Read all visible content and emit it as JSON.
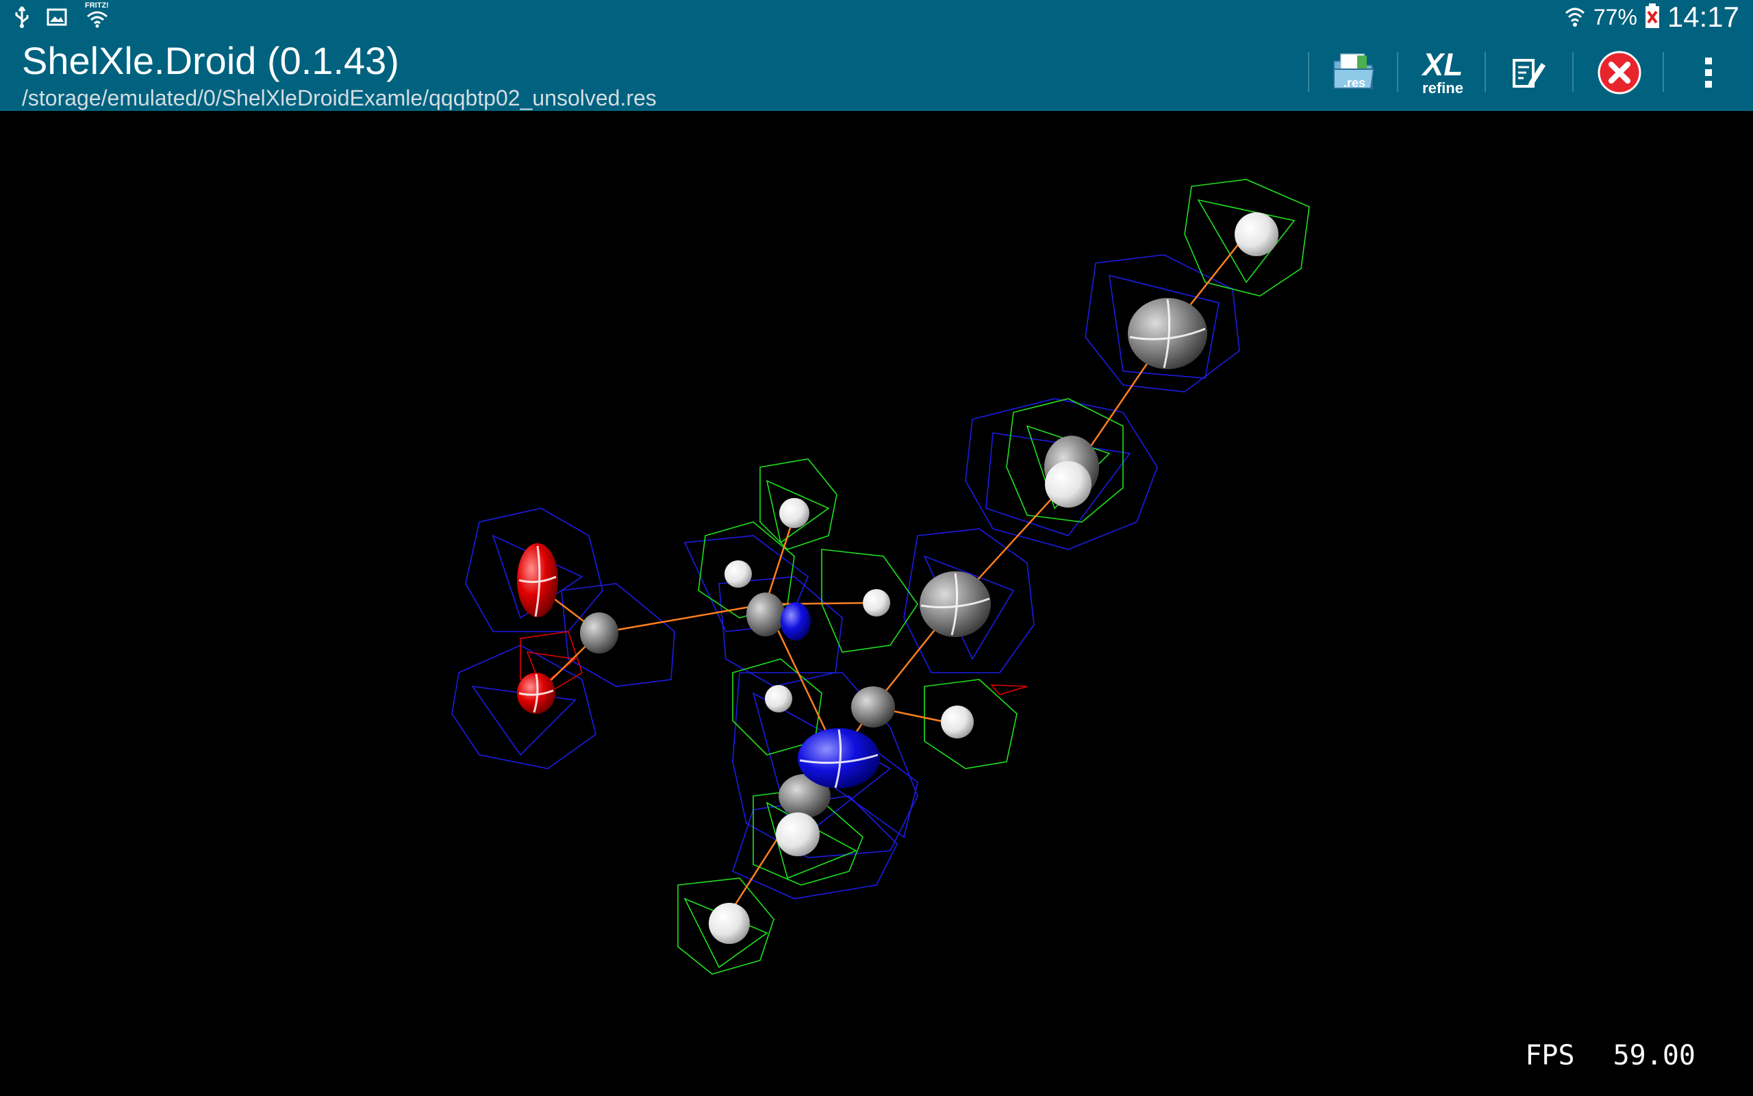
{
  "status_bar": {
    "left_icons": [
      "usb-icon",
      "image-icon",
      "wifi-direct-icon"
    ],
    "wifi_label": "FRITZ!",
    "battery_percent": "77%",
    "time": "14:17"
  },
  "action_bar": {
    "title": "ShelXle.Droid (0.1.43)",
    "file_path": "/storage/emulated/0/ShelXleDroidExamle/qqqbtp02_unsolved.res",
    "actions": {
      "res_label": ".res",
      "xl_label": "XL",
      "refine_label": "refine"
    }
  },
  "viewer": {
    "fps_label": "FPS",
    "fps_value": "59.00"
  },
  "colors": {
    "bar": "#00627f",
    "density_positive": "#2020ff",
    "density_hydrogen": "#20e020",
    "oxygen": "#e00000",
    "nitrogen": "#1010e0",
    "carbon": "#8a8a8a",
    "hydrogen": "#f0f0f0",
    "bond": "#ff8020"
  }
}
